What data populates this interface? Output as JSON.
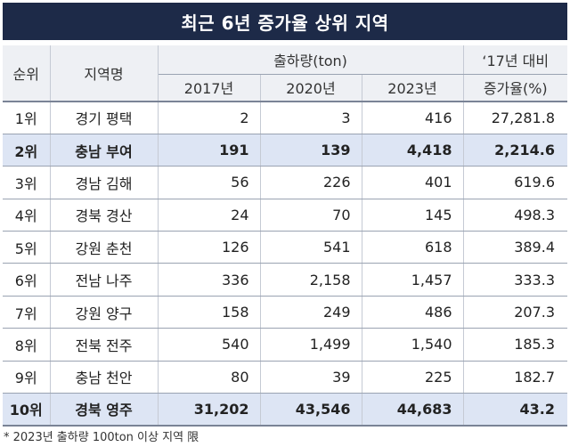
{
  "title": "최근 6년 증가율 상위 지역",
  "headers": {
    "rank": "순위",
    "region": "지역명",
    "shipment_group": "출하량(ton)",
    "year_2017": "2017년",
    "year_2020": "2020년",
    "year_2023": "2023년",
    "rate_line1": "‘17년 대비",
    "rate_line2": "증가율(%)"
  },
  "rows": [
    {
      "rank": "1위",
      "region": "경기 평택",
      "v2017": "2",
      "v2020": "3",
      "v2023": "416",
      "rate": "27,281.8"
    },
    {
      "rank": "2위",
      "region": "충남 부여",
      "v2017": "191",
      "v2020": "139",
      "v2023": "4,418",
      "rate": "2,214.6"
    },
    {
      "rank": "3위",
      "region": "경남 김해",
      "v2017": "56",
      "v2020": "226",
      "v2023": "401",
      "rate": "619.6"
    },
    {
      "rank": "4위",
      "region": "경북 경산",
      "v2017": "24",
      "v2020": "70",
      "v2023": "145",
      "rate": "498.3"
    },
    {
      "rank": "5위",
      "region": "강원 춘천",
      "v2017": "126",
      "v2020": "541",
      "v2023": "618",
      "rate": "389.4"
    },
    {
      "rank": "6위",
      "region": "전남 나주",
      "v2017": "336",
      "v2020": "2,158",
      "v2023": "1,457",
      "rate": "333.3"
    },
    {
      "rank": "7위",
      "region": "강원 양구",
      "v2017": "158",
      "v2020": "249",
      "v2023": "486",
      "rate": "207.3"
    },
    {
      "rank": "8위",
      "region": "전북 전주",
      "v2017": "540",
      "v2020": "1,499",
      "v2023": "1,540",
      "rate": "185.3"
    },
    {
      "rank": "9위",
      "region": "충남 천안",
      "v2017": "80",
      "v2020": "39",
      "v2023": "225",
      "rate": "182.7"
    },
    {
      "rank": "10위",
      "region": "경북 영주",
      "v2017": "31,202",
      "v2020": "43,546",
      "v2023": "44,683",
      "rate": "43.2"
    }
  ],
  "footnote": "* 2023년 출하량 100ton 이상 지역 限",
  "colors": {
    "title_bg": "#1d2a48",
    "header_bg": "#eef0f4",
    "highlight_bg": "#dde5f4"
  }
}
